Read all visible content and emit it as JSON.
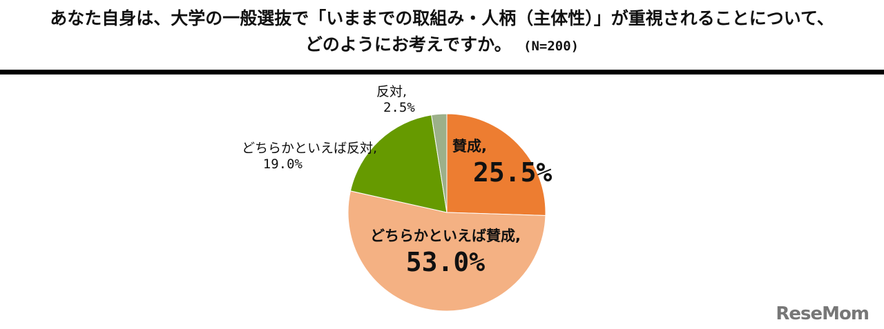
{
  "title": {
    "line1": "あなた自身は、大学の一般選抜で「いままでの取組み・人柄（主体性）」が重視されることについて、",
    "line2": "どのようにお考えですか。",
    "n": "(N=200)"
  },
  "chart_data": {
    "type": "pie",
    "title": "あなた自身は、大学の一般選抜で「いままでの取組み・人柄（主体性）」が重視されることについて、どのようにお考えですか。 (N=200)",
    "start": "12 o'clock, clockwise",
    "slices": [
      {
        "label": "賛成",
        "value": 25.5,
        "display": "25.5%",
        "color": "#ED7D31"
      },
      {
        "label": "どちらかといえば賛成",
        "value": 53.0,
        "display": "53.0%",
        "color": "#F4B183"
      },
      {
        "label": "どちらかといえば反対",
        "value": 19.0,
        "display": "19.0%",
        "color": "#669A00"
      },
      {
        "label": "反対",
        "value": 2.5,
        "display": "2.5%",
        "color": "#9CB08A"
      }
    ]
  },
  "watermark": "ReseMom"
}
